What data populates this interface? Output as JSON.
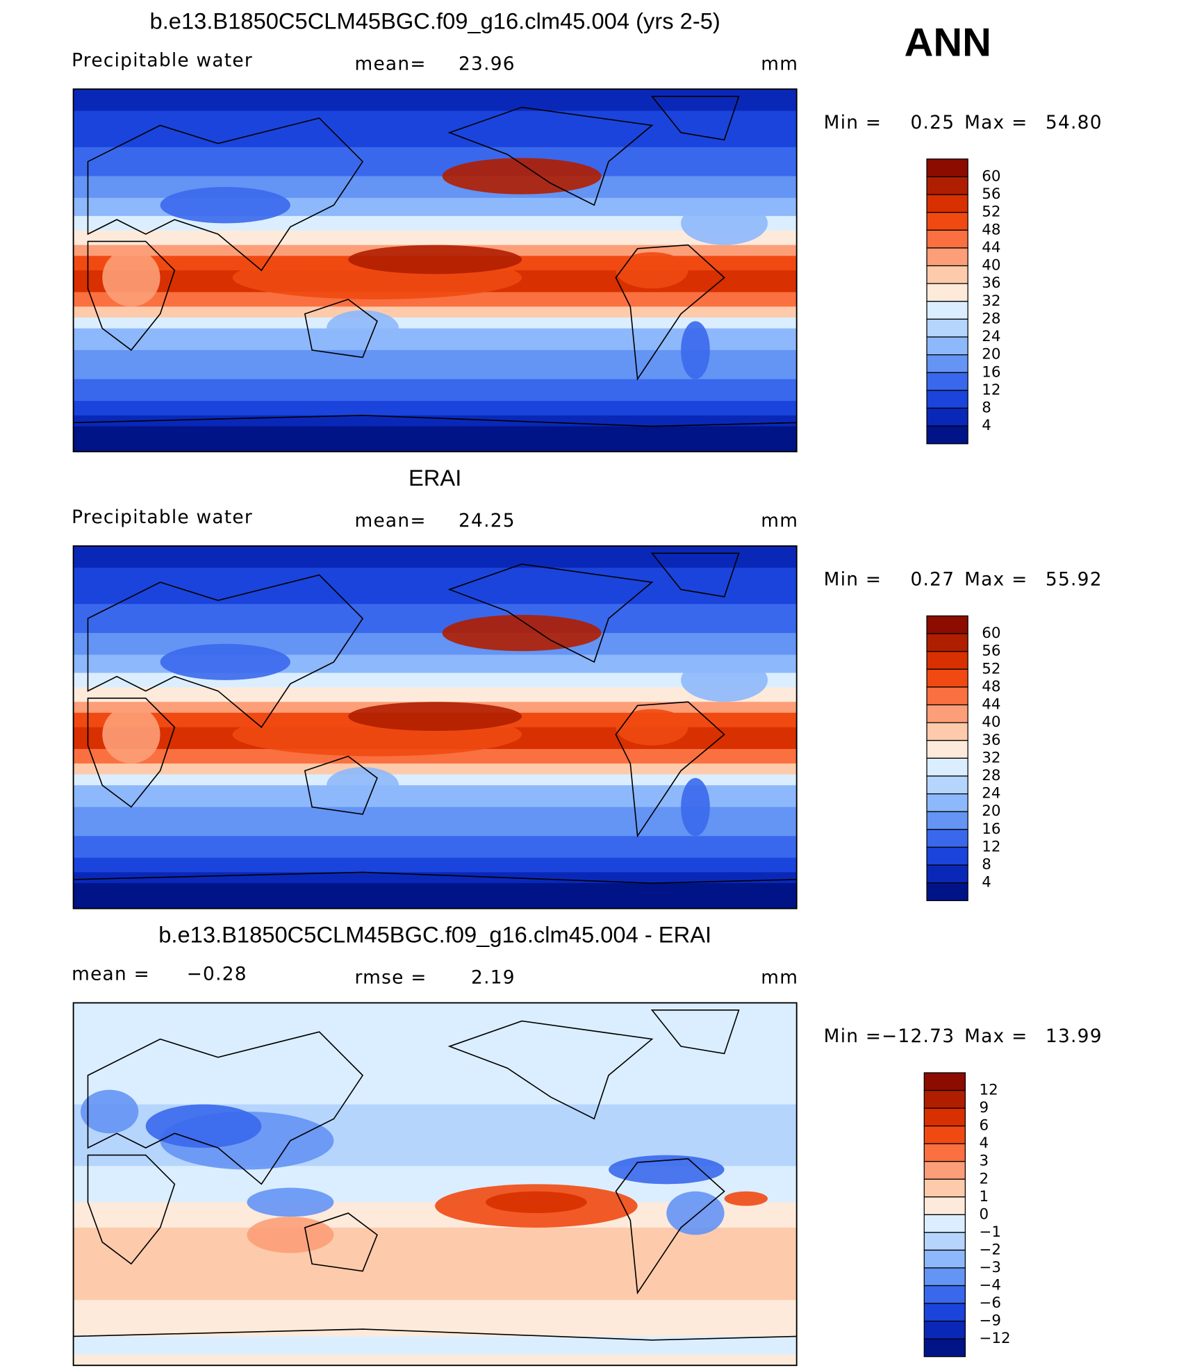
{
  "season": "ANN",
  "panels": [
    {
      "title": "b.e13.B1850C5CLM45BGC.f09_g16.clm45.004 (yrs 2-5)",
      "left": "Precipitable water",
      "center": "mean=",
      "center_value": "23.96",
      "units": "mm",
      "min_label": "Min =",
      "min": "0.25",
      "max_label": "Max =",
      "max": "54.80",
      "levels": [
        "60",
        "56",
        "52",
        "48",
        "44",
        "40",
        "36",
        "32",
        "28",
        "24",
        "20",
        "16",
        "12",
        "8",
        "4"
      ],
      "colors": [
        "#8c0c00",
        "#b01e00",
        "#d83000",
        "#f04a12",
        "#fa7040",
        "#fc9e78",
        "#fdcbab",
        "#feeadb",
        "#dbeeff",
        "#b5d5fd",
        "#8db8fb",
        "#6494f4",
        "#3a68ec",
        "#1a44dc",
        "#0a28b8",
        "#001488"
      ]
    },
    {
      "title": "ERAI",
      "left": "Precipitable water",
      "center": "mean=",
      "center_value": "24.25",
      "units": "mm",
      "min_label": "Min =",
      "min": "0.27",
      "max_label": "Max =",
      "max": "55.92",
      "levels": [
        "60",
        "56",
        "52",
        "48",
        "44",
        "40",
        "36",
        "32",
        "28",
        "24",
        "20",
        "16",
        "12",
        "8",
        "4"
      ],
      "colors": [
        "#8c0c00",
        "#b01e00",
        "#d83000",
        "#f04a12",
        "#fa7040",
        "#fc9e78",
        "#fdcbab",
        "#feeadb",
        "#dbeeff",
        "#b5d5fd",
        "#8db8fb",
        "#6494f4",
        "#3a68ec",
        "#1a44dc",
        "#0a28b8",
        "#001488"
      ]
    },
    {
      "title": "b.e13.B1850C5CLM45BGC.f09_g16.clm45.004 - ERAI",
      "left": "mean =",
      "left_value": "−0.28",
      "center": "rmse =",
      "center_value": "2.19",
      "units": "mm",
      "min_label": "Min =",
      "min": "−12.73",
      "max_label": "Max =",
      "max": "13.99",
      "levels": [
        "12",
        "9",
        "6",
        "4",
        "3",
        "2",
        "1",
        "0",
        "−1",
        "−2",
        "−3",
        "−4",
        "−6",
        "−9",
        "−12"
      ],
      "colors": [
        "#8c0c00",
        "#b01e00",
        "#d83000",
        "#f04a12",
        "#fa7040",
        "#fc9e78",
        "#fdcbab",
        "#feeadb",
        "#dbeeff",
        "#b5d5fd",
        "#8db8fb",
        "#6494f4",
        "#3a68ec",
        "#1a44dc",
        "#0a28b8",
        "#001488"
      ]
    }
  ]
}
